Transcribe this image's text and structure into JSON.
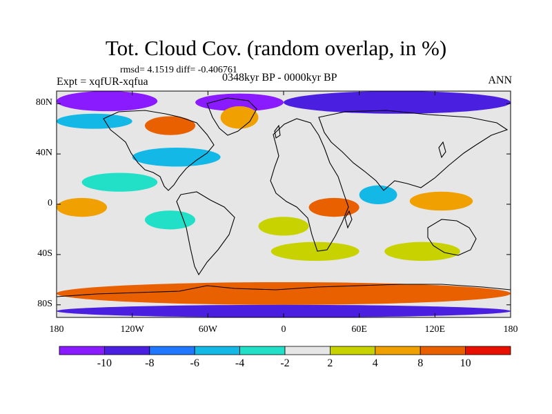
{
  "header": {
    "title": "Tot. Cloud Cov. (random overlap, in %)",
    "stats": "rmsd= 4.1519 diff= -0.406761",
    "experiment": "Expt = xqfUR-xqfua",
    "period": "0348kyr BP - 0000kyr BP",
    "season": "ANN"
  },
  "map": {
    "lat_labels": [
      "80N",
      "40N",
      "0",
      "40S",
      "80S"
    ],
    "lat_values": [
      80,
      40,
      0,
      -40,
      -80
    ],
    "lon_labels": [
      "180",
      "120W",
      "60W",
      "0",
      "60E",
      "120E",
      "180"
    ],
    "lon_values": [
      -180,
      -120,
      -60,
      0,
      60,
      120,
      180
    ],
    "lon_range": [
      -180,
      180
    ],
    "lat_range": [
      -90,
      90
    ],
    "background_color": "#e6e6e6"
  },
  "colorbar": {
    "labels": [
      "-10",
      "-8",
      "-6",
      "-4",
      "-2",
      "2",
      "4",
      "8",
      "10"
    ],
    "colors": [
      "#8a1aff",
      "#4b1fe0",
      "#1f78ff",
      "#14b8e6",
      "#22e0c8",
      "#e6e6e6",
      "#c8d200",
      "#f0a000",
      "#e86000",
      "#e81000"
    ]
  },
  "chart_data": {
    "type": "heatmap",
    "title": "Tot. Cloud Cov. (random overlap, in %)",
    "x_ticks": [
      -180,
      -120,
      -60,
      0,
      60,
      120,
      180
    ],
    "y_ticks": [
      80,
      40,
      0,
      -40,
      -80
    ],
    "levels": [
      -10,
      -8,
      -6,
      -4,
      -2,
      2,
      4,
      8,
      10
    ],
    "regions": [
      {
        "lon": [
          -180,
          -100
        ],
        "lat": [
          74,
          90
        ],
        "level": -10
      },
      {
        "lon": [
          -70,
          0
        ],
        "lat": [
          74,
          88
        ],
        "level": -10
      },
      {
        "lon": [
          0,
          180
        ],
        "lat": [
          72,
          90
        ],
        "level": -8
      },
      {
        "lon": [
          -180,
          -120
        ],
        "lat": [
          60,
          72
        ],
        "level": -4
      },
      {
        "lon": [
          -110,
          -70
        ],
        "lat": [
          55,
          70
        ],
        "level": 8
      },
      {
        "lon": [
          -50,
          -20
        ],
        "lat": [
          60,
          78
        ],
        "level": 4
      },
      {
        "lon": [
          -120,
          -50
        ],
        "lat": [
          30,
          45
        ],
        "level": -4
      },
      {
        "lon": [
          -160,
          -100
        ],
        "lat": [
          10,
          25
        ],
        "level": -2
      },
      {
        "lon": [
          -180,
          -140
        ],
        "lat": [
          -10,
          5
        ],
        "level": 4
      },
      {
        "lon": [
          -110,
          -70
        ],
        "lat": [
          -20,
          -5
        ],
        "level": -2
      },
      {
        "lon": [
          -20,
          20
        ],
        "lat": [
          -25,
          -10
        ],
        "level": 2
      },
      {
        "lon": [
          20,
          60
        ],
        "lat": [
          -10,
          5
        ],
        "level": 8
      },
      {
        "lon": [
          60,
          90
        ],
        "lat": [
          0,
          15
        ],
        "level": -4
      },
      {
        "lon": [
          100,
          150
        ],
        "lat": [
          -5,
          10
        ],
        "level": 4
      },
      {
        "lon": [
          -10,
          60
        ],
        "lat": [
          -45,
          -30
        ],
        "level": 2
      },
      {
        "lon": [
          80,
          140
        ],
        "lat": [
          -45,
          -30
        ],
        "level": 2
      },
      {
        "lon": [
          -180,
          180
        ],
        "lat": [
          -80,
          -62
        ],
        "level": 8
      },
      {
        "lon": [
          -180,
          180
        ],
        "lat": [
          -90,
          -80
        ],
        "level": -8
      }
    ]
  }
}
